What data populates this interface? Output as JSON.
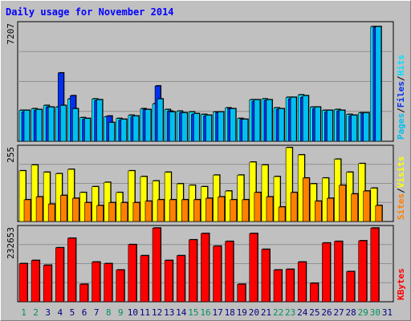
{
  "title": "Daily usage for November 2014",
  "colors": {
    "hits": "#00e0ff",
    "files": "#0030f0",
    "pages": "#00c0f0",
    "visits": "#ffff00",
    "sites": "#ff8000",
    "kbytes": "#ff0000",
    "background": "#c0c0c0",
    "weekend": "#009060",
    "day": "#000080"
  },
  "chart_data": [
    {
      "type": "bar",
      "name": "hits-files-pages",
      "max_label": "7207",
      "side_labels": [
        "Pages",
        "Files",
        "Hits"
      ],
      "categories": [
        "1",
        "2",
        "3",
        "4",
        "5",
        "6",
        "7",
        "8",
        "9",
        "10",
        "11",
        "12",
        "13",
        "14",
        "15",
        "16",
        "17",
        "18",
        "19",
        "20",
        "21",
        "22",
        "23",
        "24",
        "25",
        "26",
        "27",
        "28",
        "29",
        "30",
        "31"
      ],
      "ylim": [
        0,
        7207
      ],
      "series": [
        {
          "name": "Hits",
          "values": [
            1900,
            2000,
            2200,
            2100,
            2600,
            1450,
            2600,
            1500,
            1400,
            1600,
            2000,
            2300,
            1950,
            1850,
            1800,
            1650,
            1800,
            2050,
            1400,
            2550,
            2600,
            2050,
            2700,
            2850,
            2100,
            1900,
            1950,
            1650,
            1750,
            7050,
            0
          ]
        },
        {
          "name": "Files",
          "values": [
            1800,
            1900,
            2100,
            4200,
            2800,
            1350,
            2500,
            1550,
            1300,
            1500,
            1950,
            3400,
            1850,
            1750,
            1650,
            1550,
            1750,
            2000,
            1350,
            2450,
            2500,
            1950,
            2600,
            2700,
            2000,
            1800,
            1850,
            1550,
            1700,
            7000,
            0
          ]
        },
        {
          "name": "Pages",
          "values": [
            1900,
            1950,
            2100,
            2200,
            2000,
            1400,
            2550,
            1150,
            1350,
            1550,
            1950,
            2600,
            1800,
            1750,
            1700,
            1600,
            1800,
            2000,
            1350,
            2550,
            2550,
            2000,
            2700,
            2800,
            2100,
            1900,
            1900,
            1600,
            1750,
            7050,
            0
          ]
        }
      ]
    },
    {
      "type": "bar",
      "name": "visits-sites",
      "max_label": "255",
      "side_labels": [
        "Sites",
        "Visits"
      ],
      "categories": [
        "1",
        "2",
        "3",
        "4",
        "5",
        "6",
        "7",
        "8",
        "9",
        "10",
        "11",
        "12",
        "13",
        "14",
        "15",
        "16",
        "17",
        "18",
        "19",
        "20",
        "21",
        "22",
        "23",
        "24",
        "25",
        "26",
        "27",
        "28",
        "29",
        "30",
        "31"
      ],
      "ylim": [
        0,
        255
      ],
      "series": [
        {
          "name": "Visits",
          "values": [
            175,
            195,
            170,
            165,
            180,
            100,
            120,
            135,
            100,
            175,
            155,
            140,
            170,
            130,
            125,
            120,
            160,
            105,
            160,
            205,
            195,
            155,
            255,
            230,
            130,
            150,
            215,
            170,
            200,
            115,
            0
          ]
        },
        {
          "name": "Sites",
          "values": [
            75,
            85,
            60,
            90,
            80,
            65,
            55,
            65,
            65,
            65,
            70,
            75,
            75,
            75,
            75,
            80,
            85,
            75,
            75,
            100,
            85,
            50,
            100,
            150,
            70,
            80,
            125,
            95,
            105,
            55,
            0
          ]
        }
      ]
    },
    {
      "type": "bar",
      "name": "kbytes",
      "max_label": "232653",
      "side_labels": [
        "KBytes"
      ],
      "categories": [
        "1",
        "2",
        "3",
        "4",
        "5",
        "6",
        "7",
        "8",
        "9",
        "10",
        "11",
        "12",
        "13",
        "14",
        "15",
        "16",
        "17",
        "18",
        "19",
        "20",
        "21",
        "22",
        "23",
        "24",
        "25",
        "26",
        "27",
        "28",
        "29",
        "30",
        "31"
      ],
      "ylim": [
        0,
        232653
      ],
      "series": [
        {
          "name": "KBytes",
          "values": [
            120000,
            130000,
            115000,
            170000,
            200000,
            55000,
            125000,
            120000,
            100000,
            180000,
            145000,
            232000,
            130000,
            145000,
            195000,
            215000,
            175000,
            190000,
            55000,
            215000,
            165000,
            100000,
            102000,
            125000,
            58000,
            185000,
            190000,
            95000,
            192000,
            232000,
            0
          ]
        }
      ]
    }
  ],
  "day_labels": [
    "1",
    "2",
    "3",
    "4",
    "5",
    "6",
    "7",
    "8",
    "9",
    "10",
    "11",
    "12",
    "13",
    "14",
    "15",
    "16",
    "17",
    "18",
    "19",
    "20",
    "21",
    "22",
    "23",
    "24",
    "25",
    "26",
    "27",
    "28",
    "29",
    "30",
    "31"
  ],
  "weekend_days": [
    1,
    2,
    8,
    9,
    15,
    16,
    22,
    23,
    29,
    30
  ]
}
